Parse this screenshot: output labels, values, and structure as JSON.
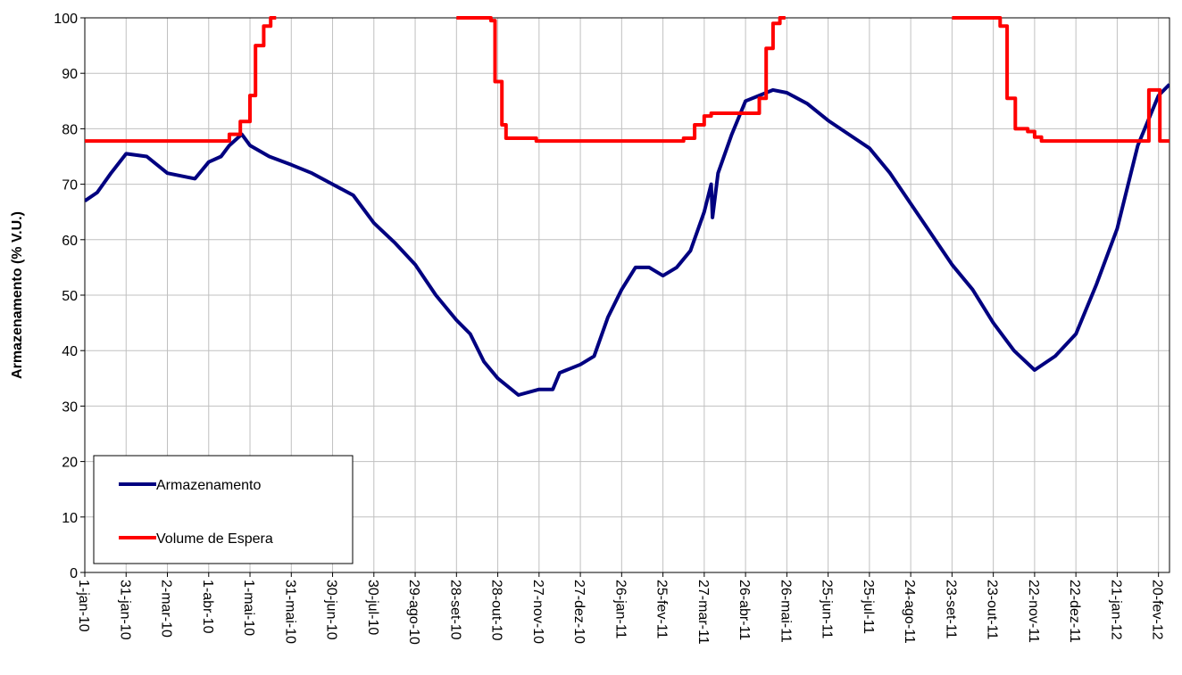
{
  "chart_data": {
    "type": "line",
    "y_label": "Armazenamento (% V.U.)",
    "xlim": [
      "2010-01-01",
      "2012-02-28"
    ],
    "xticks": [
      {
        "value": "2010-01-01",
        "label": "1-jan-10"
      },
      {
        "value": "2010-01-31",
        "label": "31-jan-10"
      },
      {
        "value": "2010-03-02",
        "label": "2-mar-10"
      },
      {
        "value": "2010-04-01",
        "label": "1-abr-10"
      },
      {
        "value": "2010-05-01",
        "label": "1-mai-10"
      },
      {
        "value": "2010-05-31",
        "label": "31-mai-10"
      },
      {
        "value": "2010-06-30",
        "label": "30-jun-10"
      },
      {
        "value": "2010-07-30",
        "label": "30-jul-10"
      },
      {
        "value": "2010-08-29",
        "label": "29-ago-10"
      },
      {
        "value": "2010-09-28",
        "label": "28-set-10"
      },
      {
        "value": "2010-10-28",
        "label": "28-out-10"
      },
      {
        "value": "2010-11-27",
        "label": "27-nov-10"
      },
      {
        "value": "2010-12-27",
        "label": "27-dez-10"
      },
      {
        "value": "2011-01-26",
        "label": "26-jan-11"
      },
      {
        "value": "2011-02-25",
        "label": "25-fev-11"
      },
      {
        "value": "2011-03-27",
        "label": "27-mar-11"
      },
      {
        "value": "2011-04-26",
        "label": "26-abr-11"
      },
      {
        "value": "2011-05-26",
        "label": "26-mai-11"
      },
      {
        "value": "2011-06-25",
        "label": "25-jun-11"
      },
      {
        "value": "2011-07-25",
        "label": "25-jul-11"
      },
      {
        "value": "2011-08-24",
        "label": "24-ago-11"
      },
      {
        "value": "2011-09-23",
        "label": "23-set-11"
      },
      {
        "value": "2011-10-23",
        "label": "23-out-11"
      },
      {
        "value": "2011-11-22",
        "label": "22-nov-11"
      },
      {
        "value": "2011-12-22",
        "label": "22-dez-11"
      },
      {
        "value": "2012-01-21",
        "label": "21-jan-12"
      },
      {
        "value": "2012-02-20",
        "label": "20-fev-12"
      }
    ],
    "ylim": [
      0,
      100
    ],
    "yticks": [
      0,
      10,
      20,
      30,
      40,
      50,
      60,
      70,
      80,
      90,
      100
    ],
    "grid": true,
    "legend": "lower left",
    "series": [
      {
        "name": "Armazenamento",
        "color": "#000080",
        "x": [
          "2010-01-01",
          "2010-01-10",
          "2010-01-20",
          "2010-01-31",
          "2010-02-15",
          "2010-03-02",
          "2010-03-12",
          "2010-03-22",
          "2010-04-01",
          "2010-04-10",
          "2010-04-16",
          "2010-04-25",
          "2010-05-01",
          "2010-05-15",
          "2010-05-31",
          "2010-06-15",
          "2010-06-30",
          "2010-07-15",
          "2010-07-30",
          "2010-08-14",
          "2010-08-29",
          "2010-09-13",
          "2010-09-28",
          "2010-10-08",
          "2010-10-18",
          "2010-10-28",
          "2010-11-12",
          "2010-11-27",
          "2010-12-07",
          "2010-12-12",
          "2010-12-27",
          "2011-01-06",
          "2011-01-16",
          "2011-01-26",
          "2011-02-05",
          "2011-02-15",
          "2011-02-25",
          "2011-03-07",
          "2011-03-17",
          "2011-03-27",
          "2011-04-01",
          "2011-04-02",
          "2011-04-06",
          "2011-04-16",
          "2011-04-26",
          "2011-05-06",
          "2011-05-16",
          "2011-05-26",
          "2011-06-10",
          "2011-06-25",
          "2011-07-10",
          "2011-07-25",
          "2011-08-09",
          "2011-08-24",
          "2011-09-08",
          "2011-09-23",
          "2011-10-08",
          "2011-10-23",
          "2011-11-07",
          "2011-11-22",
          "2011-12-07",
          "2011-12-22",
          "2012-01-06",
          "2012-01-21",
          "2012-02-05",
          "2012-02-20",
          "2012-02-28"
        ],
        "values": [
          67,
          68.5,
          72,
          75.5,
          75,
          72,
          71.5,
          71,
          74,
          75,
          77,
          79,
          77,
          75,
          73.5,
          72,
          70,
          68,
          63,
          59.5,
          55.5,
          50,
          45.5,
          43,
          38,
          35,
          32,
          33,
          33,
          36,
          37.5,
          39,
          46,
          51,
          55,
          55,
          53.5,
          55,
          58,
          65,
          70,
          64,
          72,
          79,
          85,
          86,
          87,
          86.5,
          84.5,
          81.5,
          79,
          76.5,
          72,
          66.5,
          61,
          55.5,
          51,
          45,
          40,
          36.5,
          39,
          43,
          52,
          62,
          77,
          86,
          88
        ]
      },
      {
        "name": "Volume de Espera",
        "color": "#ff0000",
        "x": [
          "2010-01-01",
          "2010-04-16",
          "2010-04-16",
          "2010-04-24",
          "2010-04-24",
          "2010-05-01",
          "2010-05-01",
          "2010-05-05",
          "2010-05-05",
          "2010-05-11",
          "2010-05-11",
          "2010-05-16",
          "2010-05-16",
          "2010-05-20",
          null,
          "2010-09-28",
          "2010-10-23",
          "2010-10-23",
          "2010-10-26",
          "2010-10-26",
          "2010-10-31",
          "2010-10-31",
          "2010-11-03",
          "2010-11-03",
          "2010-11-25",
          "2010-11-25",
          "2011-03-12",
          "2011-03-12",
          "2011-03-20",
          "2011-03-20",
          "2011-03-27",
          "2011-03-27",
          "2011-04-01",
          "2011-04-01",
          "2011-05-06",
          "2011-05-06",
          "2011-05-11",
          "2011-05-11",
          "2011-05-16",
          "2011-05-16",
          "2011-05-21",
          "2011-05-21",
          "2011-05-25",
          null,
          "2011-09-23",
          "2011-10-28",
          "2011-10-28",
          "2011-11-02",
          "2011-11-02",
          "2011-11-08",
          "2011-11-08",
          "2011-11-17",
          "2011-11-17",
          "2011-11-22",
          "2011-11-22",
          "2011-11-27",
          "2011-11-27",
          "2012-02-13",
          "2012-02-13",
          "2012-02-21",
          "2012-02-21",
          "2012-02-28"
        ],
        "values": [
          77.8,
          77.8,
          79,
          79,
          81.3,
          81.3,
          86,
          86,
          95,
          95,
          98.5,
          98.5,
          100,
          100,
          null,
          100,
          100,
          99.5,
          99.5,
          88.5,
          88.5,
          80.7,
          80.7,
          78.3,
          78.3,
          77.8,
          77.8,
          78.3,
          78.3,
          80.7,
          80.7,
          82.3,
          82.3,
          82.8,
          82.8,
          85.5,
          85.5,
          94.5,
          94.5,
          99,
          99,
          100,
          100,
          null,
          100,
          100,
          98.5,
          98.5,
          85.5,
          85.5,
          80,
          80,
          79.5,
          79.5,
          78.5,
          78.5,
          77.8,
          77.8,
          87,
          87,
          77.8,
          77.8
        ]
      }
    ]
  }
}
